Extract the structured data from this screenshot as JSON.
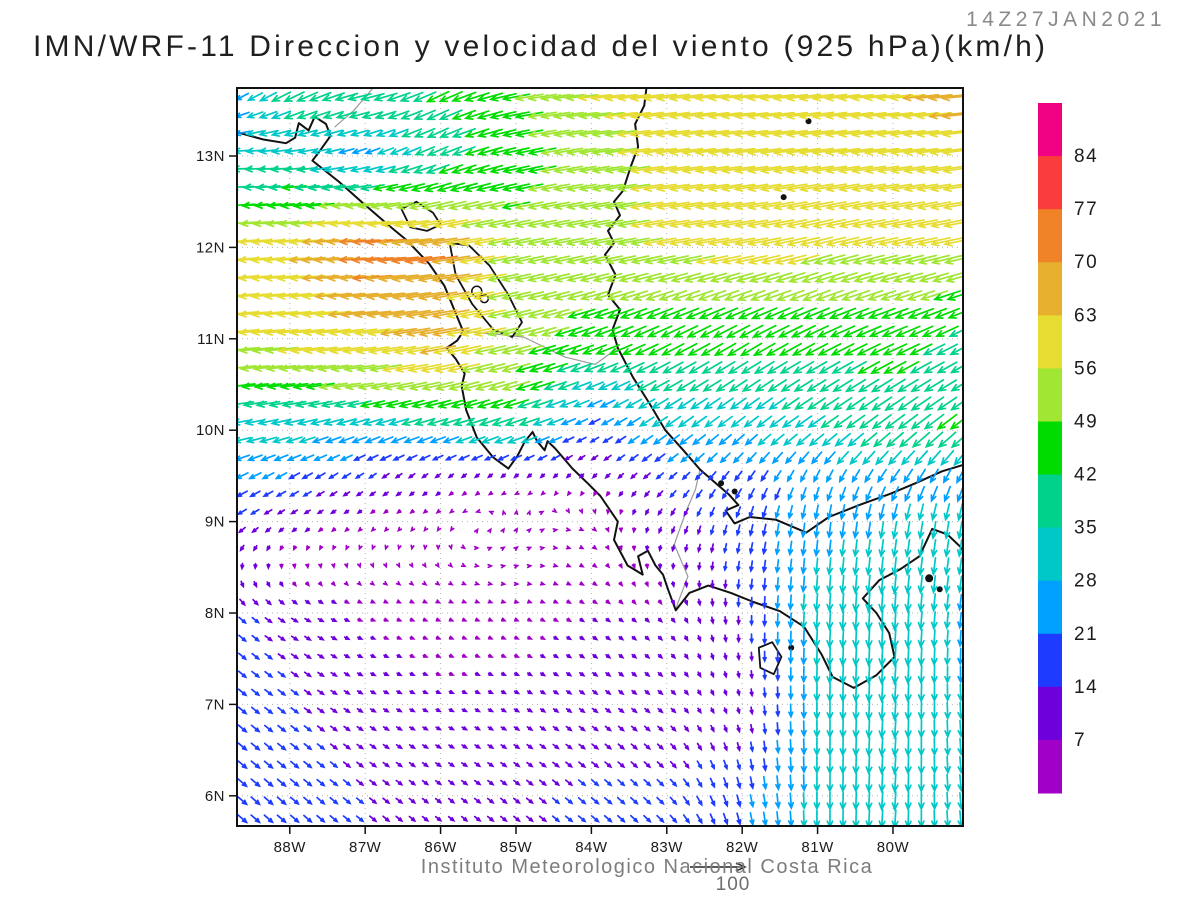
{
  "header": {
    "title": "IMN/WRF-11 Direccion y velocidad del viento (925 hPa)(km/h)",
    "timestamp": "14Z27JAN2021"
  },
  "footer": {
    "caption": "Instituto Meteorologico Nacional Costa Rica",
    "reference_arrow_label": "100"
  },
  "chart_data": {
    "type": "vector_field",
    "title": "IMN/WRF-11 Direccion y velocidad del viento (925 hPa)(km/h)",
    "timestamp": "14Z27JAN2021",
    "variable": "wind direction and speed",
    "level": "925 hPa",
    "units": "km/h",
    "lon_range": [
      -88.7,
      -79.07
    ],
    "lat_range": [
      5.67,
      13.744
    ],
    "grid_dotted": true,
    "x_axis": {
      "labels": [
        "88W",
        "87W",
        "86W",
        "85W",
        "84W",
        "83W",
        "82W",
        "81W",
        "80W"
      ],
      "lons": [
        -88,
        -87,
        -86,
        -85,
        -84,
        -83,
        -82,
        -81,
        -80
      ]
    },
    "y_axis": {
      "labels": [
        "13N",
        "12N",
        "11N",
        "10N",
        "9N",
        "8N",
        "7N",
        "6N"
      ],
      "lats": [
        13,
        12,
        11,
        10,
        9,
        8,
        7,
        6
      ]
    },
    "colorbar": {
      "position": "right",
      "tick_labels": [
        "84",
        "77",
        "70",
        "63",
        "56",
        "49",
        "42",
        "35",
        "28",
        "21",
        "14",
        "7"
      ],
      "levels_ascending": [
        7,
        14,
        21,
        28,
        35,
        42,
        49,
        56,
        63,
        70,
        77,
        84
      ],
      "colors_top_to_bottom": [
        "#F00082",
        "#FA3C3C",
        "#F08228",
        "#E6AF2D",
        "#E6DC32",
        "#A0E632",
        "#00DC00",
        "#00D28C",
        "#00C8C8",
        "#00A0FF",
        "#1E3CFF",
        "#6E00DC",
        "#A000C8"
      ]
    },
    "reference_vector": {
      "value": 100,
      "pixels_per_unit": 0.55
    },
    "wind_grid": {
      "comment": "u,v in km/h on lats x lons grid; arrows drawn by bilinear interpolation",
      "lats": [
        14,
        13,
        12,
        11,
        10.5,
        10,
        9.5,
        9,
        8,
        7,
        6
      ],
      "lons": [
        -89,
        -88,
        -87,
        -86,
        -85,
        -84,
        -83,
        -82,
        -81,
        -80,
        -79
      ],
      "u": [
        [
          -5,
          -35,
          -50,
          -40,
          -48,
          -58,
          -58,
          -60,
          -60,
          -63,
          -68
        ],
        [
          -30,
          -33,
          -22,
          -35,
          -45,
          -52,
          -58,
          -58,
          -60,
          -60,
          -60
        ],
        [
          -58,
          -60,
          -75,
          -70,
          -50,
          -52,
          -56,
          -58,
          -56,
          -56,
          -56
        ],
        [
          -56,
          -58,
          -60,
          -65,
          -50,
          -44,
          -40,
          -38,
          -40,
          -42,
          -35
        ],
        [
          -45,
          -48,
          -50,
          -55,
          -48,
          -30,
          -32,
          -30,
          -32,
          -36,
          -30
        ],
        [
          -32,
          -30,
          -28,
          -30,
          -35,
          -15,
          -25,
          -22,
          -28,
          -32,
          -35
        ],
        [
          -22,
          -18,
          -12,
          -8,
          -6,
          -6,
          -12,
          -12,
          -10,
          -15,
          -12
        ],
        [
          -15,
          -8,
          -4,
          -2,
          2,
          3,
          -5,
          -5,
          -3,
          -5,
          -5
        ],
        [
          12,
          10,
          6,
          5,
          5,
          6,
          5,
          0,
          -2,
          -2,
          -3
        ],
        [
          14,
          12,
          8,
          7,
          7,
          8,
          7,
          2,
          0,
          -2,
          2
        ],
        [
          16,
          14,
          11,
          9,
          10,
          12,
          11,
          5,
          0,
          -2,
          3
        ]
      ],
      "v": [
        [
          -12,
          -25,
          -10,
          -20,
          -8,
          -5,
          -8,
          -5,
          -8,
          -5,
          -5
        ],
        [
          0,
          -3,
          -8,
          -15,
          -10,
          -8,
          -8,
          -8,
          -8,
          -8,
          -8
        ],
        [
          -3,
          -5,
          -3,
          -10,
          -10,
          -10,
          -10,
          -10,
          -14,
          -12,
          -12
        ],
        [
          -5,
          -6,
          -8,
          -12,
          -12,
          -16,
          -20,
          -22,
          -20,
          -18,
          -18
        ],
        [
          -5,
          -6,
          -8,
          -12,
          -14,
          -12,
          -18,
          -20,
          -20,
          -22,
          -18
        ],
        [
          -5,
          -8,
          -10,
          -10,
          -12,
          -8,
          -18,
          -18,
          -20,
          -25,
          -28
        ],
        [
          -10,
          -10,
          -8,
          -6,
          -5,
          -6,
          -10,
          -16,
          -20,
          -22,
          -24
        ],
        [
          -10,
          -5,
          -3,
          -2,
          4,
          -2,
          -10,
          -18,
          -25,
          -28,
          -30
        ],
        [
          -12,
          -6,
          -2,
          -2,
          -2,
          -4,
          -5,
          -14,
          -32,
          -35,
          -26
        ],
        [
          -12,
          -9,
          -5,
          -3,
          -4,
          -6,
          -6,
          -8,
          -30,
          -33,
          -28
        ],
        [
          -14,
          -12,
          -9,
          -7,
          -8,
          -10,
          -11,
          -20,
          -30,
          -32,
          -28
        ]
      ]
    },
    "map": {
      "coastlines": [
        [
          [
            -88.7,
            13.26
          ],
          [
            -88.35,
            13.18
          ],
          [
            -88.05,
            13.14
          ],
          [
            -87.93,
            13.2
          ],
          [
            -87.88,
            13.36
          ],
          [
            -87.75,
            13.28
          ],
          [
            -87.67,
            13.43
          ],
          [
            -87.52,
            13.35
          ],
          [
            -87.46,
            13.22
          ],
          [
            -87.58,
            13.08
          ],
          [
            -87.7,
            12.95
          ],
          [
            -87.35,
            12.72
          ],
          [
            -87.05,
            12.5
          ],
          [
            -86.7,
            12.25
          ],
          [
            -86.45,
            12.08
          ],
          [
            -86.15,
            11.82
          ],
          [
            -85.95,
            11.58
          ],
          [
            -85.82,
            11.32
          ],
          [
            -85.7,
            11.08
          ],
          [
            -85.78,
            10.98
          ],
          [
            -85.92,
            10.9
          ],
          [
            -85.8,
            10.78
          ],
          [
            -85.68,
            10.62
          ],
          [
            -85.72,
            10.48
          ],
          [
            -85.66,
            10.22
          ],
          [
            -85.52,
            9.92
          ],
          [
            -85.3,
            9.7
          ],
          [
            -85.1,
            9.58
          ],
          [
            -84.98,
            9.72
          ],
          [
            -84.88,
            9.88
          ],
          [
            -84.78,
            9.98
          ],
          [
            -84.72,
            9.88
          ],
          [
            -84.62,
            9.78
          ],
          [
            -84.58,
            9.88
          ],
          [
            -84.48,
            9.8
          ],
          [
            -84.25,
            9.58
          ],
          [
            -84.05,
            9.42
          ],
          [
            -83.88,
            9.28
          ],
          [
            -83.65,
            9.0
          ],
          [
            -83.7,
            8.8
          ],
          [
            -83.52,
            8.52
          ],
          [
            -83.32,
            8.42
          ],
          [
            -83.38,
            8.62
          ],
          [
            -83.25,
            8.68
          ],
          [
            -83.15,
            8.52
          ],
          [
            -83.05,
            8.42
          ],
          [
            -82.98,
            8.25
          ],
          [
            -82.88,
            8.03
          ],
          [
            -82.7,
            8.22
          ],
          [
            -82.45,
            8.3
          ],
          [
            -82.15,
            8.22
          ],
          [
            -81.85,
            8.12
          ],
          [
            -81.5,
            8.02
          ],
          [
            -81.18,
            7.85
          ],
          [
            -80.95,
            7.55
          ],
          [
            -80.8,
            7.3
          ],
          [
            -80.52,
            7.18
          ],
          [
            -80.22,
            7.32
          ],
          [
            -79.98,
            7.52
          ],
          [
            -80.05,
            7.78
          ],
          [
            -80.22,
            8.0
          ],
          [
            -80.4,
            8.16
          ],
          [
            -80.18,
            8.36
          ],
          [
            -79.9,
            8.48
          ],
          [
            -79.65,
            8.62
          ],
          [
            -79.48,
            8.92
          ],
          [
            -79.28,
            8.86
          ],
          [
            -79.1,
            8.72
          ],
          [
            -79.07,
            8.68
          ]
        ],
        [
          [
            -79.07,
            9.62
          ],
          [
            -79.35,
            9.55
          ],
          [
            -79.7,
            9.42
          ],
          [
            -80.05,
            9.3
          ],
          [
            -80.45,
            9.18
          ],
          [
            -80.85,
            9.05
          ],
          [
            -81.15,
            8.88
          ],
          [
            -81.55,
            9.02
          ],
          [
            -81.9,
            9.05
          ],
          [
            -82.1,
            8.98
          ],
          [
            -82.22,
            9.12
          ],
          [
            -82.05,
            9.18
          ],
          [
            -82.18,
            9.3
          ],
          [
            -82.35,
            9.42
          ],
          [
            -82.56,
            9.57
          ],
          [
            -82.78,
            9.78
          ],
          [
            -83.02,
            10.0
          ],
          [
            -83.22,
            10.28
          ],
          [
            -83.45,
            10.58
          ],
          [
            -83.65,
            10.9
          ],
          [
            -83.72,
            11.1
          ],
          [
            -83.62,
            11.32
          ],
          [
            -83.78,
            11.48
          ],
          [
            -83.68,
            11.7
          ],
          [
            -83.82,
            11.92
          ],
          [
            -83.7,
            12.05
          ],
          [
            -83.78,
            12.18
          ],
          [
            -83.62,
            12.35
          ],
          [
            -83.7,
            12.5
          ],
          [
            -83.58,
            12.62
          ],
          [
            -83.48,
            12.88
          ],
          [
            -83.38,
            13.1
          ],
          [
            -83.42,
            13.35
          ],
          [
            -83.3,
            13.55
          ],
          [
            -83.27,
            13.74
          ]
        ]
      ],
      "lakes": [
        [
          [
            -86.52,
            12.42
          ],
          [
            -86.32,
            12.5
          ],
          [
            -86.1,
            12.38
          ],
          [
            -86.0,
            12.25
          ],
          [
            -86.18,
            12.18
          ],
          [
            -86.4,
            12.22
          ],
          [
            -86.52,
            12.42
          ]
        ],
        [
          [
            -85.88,
            12.05
          ],
          [
            -85.62,
            12.02
          ],
          [
            -85.35,
            11.8
          ],
          [
            -85.1,
            11.48
          ],
          [
            -84.92,
            11.18
          ],
          [
            -85.05,
            11.02
          ],
          [
            -85.3,
            11.1
          ],
          [
            -85.58,
            11.38
          ],
          [
            -85.8,
            11.7
          ],
          [
            -85.88,
            12.05
          ]
        ],
        [
          [
            -81.78,
            7.62
          ],
          [
            -81.6,
            7.68
          ],
          [
            -81.48,
            7.52
          ],
          [
            -81.58,
            7.33
          ],
          [
            -81.76,
            7.4
          ],
          [
            -81.78,
            7.62
          ]
        ]
      ],
      "borders": [
        [
          [
            -87.4,
            13.32
          ],
          [
            -87.15,
            13.5
          ],
          [
            -86.9,
            13.74
          ]
        ],
        [
          [
            -85.7,
            11.08
          ],
          [
            -85.25,
            11.05
          ],
          [
            -84.9,
            11.02
          ],
          [
            -84.35,
            10.8
          ],
          [
            -83.95,
            10.72
          ],
          [
            -83.65,
            10.9
          ]
        ],
        [
          [
            -82.88,
            8.05
          ],
          [
            -82.72,
            8.4
          ],
          [
            -82.9,
            8.75
          ],
          [
            -82.75,
            9.1
          ],
          [
            -82.62,
            9.35
          ],
          [
            -82.56,
            9.57
          ]
        ]
      ],
      "island_dots": [
        [
          -81.45,
          12.55,
          3
        ],
        [
          -81.12,
          13.38,
          3
        ],
        [
          -79.52,
          8.38,
          4
        ],
        [
          -79.38,
          8.26,
          3
        ],
        [
          -82.28,
          9.42,
          3
        ],
        [
          -82.1,
          9.33,
          3
        ],
        [
          -81.35,
          7.62,
          3
        ]
      ],
      "island_rings": [
        [
          -85.52,
          11.52,
          5
        ],
        [
          -85.42,
          11.44,
          4
        ]
      ]
    }
  }
}
